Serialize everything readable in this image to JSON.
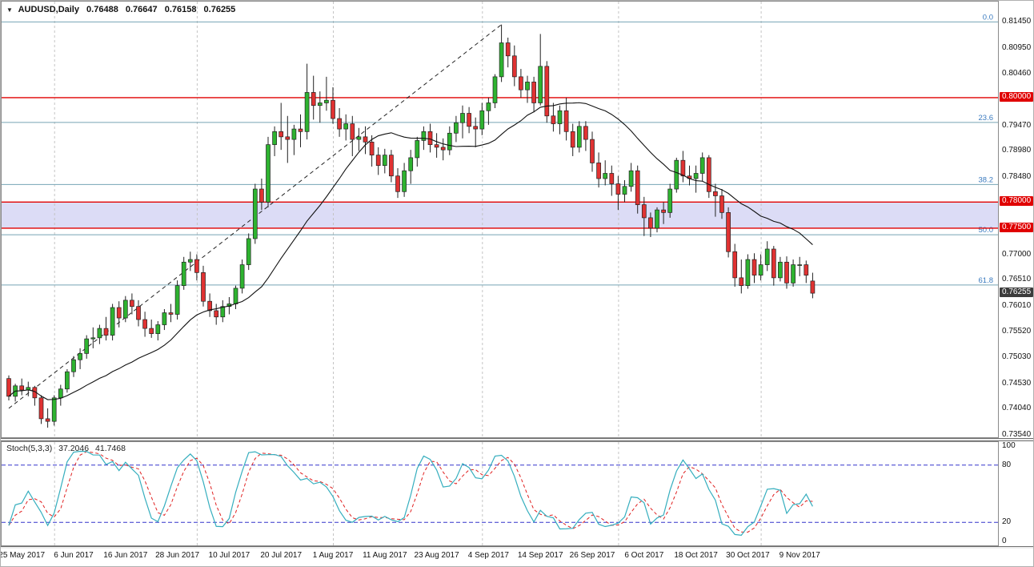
{
  "icons": {
    "quick_nav": "▼"
  },
  "header": {
    "symbol": "AUDUSD,Daily",
    "open": "0.76488",
    "high": "0.76647",
    "low": "0.76158",
    "close": "0.76255"
  },
  "indicator": {
    "label": "Stoch(5,3,3)",
    "value_k": "37.2046",
    "value_d": "41.7468"
  },
  "colors": {
    "bull": "#2eb330",
    "bear": "#e03232",
    "wick": "#222222",
    "ma": "#111111",
    "fib_line": "#76a5b5",
    "fib_label": "#3a7abf",
    "hline": "#e00000",
    "band": "#dcdcf6",
    "separator": "#c4c4c4",
    "border": "#8a8a8a",
    "stoch_k": "#35aebe",
    "stoch_d": "#e02020",
    "stoch_level": "#3333cc",
    "red_label_bg": "#e00000",
    "current_label_bg": "#3c3c3c"
  },
  "price_axis": {
    "normal": [
      {
        "text": "0.81450",
        "price": 0.8145
      },
      {
        "text": "0.80950",
        "price": 0.8095
      },
      {
        "text": "0.80460",
        "price": 0.8046
      },
      {
        "text": "0.79470",
        "price": 0.7947
      },
      {
        "text": "0.78980",
        "price": 0.7898
      },
      {
        "text": "0.78480",
        "price": 0.7848
      },
      {
        "text": "0.77000",
        "price": 0.77
      },
      {
        "text": "0.76510",
        "price": 0.7651
      },
      {
        "text": "0.76010",
        "price": 0.7601
      },
      {
        "text": "0.75520",
        "price": 0.7552
      },
      {
        "text": "0.75030",
        "price": 0.7503
      },
      {
        "text": "0.74530",
        "price": 0.7453
      },
      {
        "text": "0.74040",
        "price": 0.7404
      },
      {
        "text": "0.73540",
        "price": 0.7354
      }
    ],
    "red": [
      {
        "text": "0.80000",
        "price": 0.8
      },
      {
        "text": "0.78000",
        "price": 0.78
      },
      {
        "text": "0.77500",
        "price": 0.775
      }
    ],
    "current": {
      "text": "0.76255",
      "price": 0.76255
    }
  },
  "stoch_axis": [
    {
      "text": "100",
      "value": 100
    },
    {
      "text": "80",
      "value": 80
    },
    {
      "text": "20",
      "value": 20
    },
    {
      "text": "0",
      "value": 0
    }
  ],
  "chart_data": {
    "type": "candlestick",
    "symbol": "AUDUSD",
    "timeframe": "Daily",
    "main_ylim": [
      0.7348,
      0.8184
    ],
    "ma_period": 20,
    "band": {
      "from": 0.78,
      "to": 0.775
    },
    "hlines": [
      {
        "price": 0.8
      },
      {
        "price": 0.78
      },
      {
        "price": 0.775
      }
    ],
    "fibonacci": [
      {
        "label": "0.0",
        "price": 0.8145
      },
      {
        "label": "23.6",
        "price": 0.79526
      },
      {
        "label": "38.2",
        "price": 0.78336
      },
      {
        "label": "50.0",
        "price": 0.77375
      },
      {
        "label": "61.8",
        "price": 0.76412
      }
    ],
    "trendline": {
      "from_index": 0,
      "from_price": 0.7405,
      "to_index": 76,
      "to_price": 0.814,
      "style": "dashed"
    },
    "month_separator_indices": [
      7,
      29,
      50,
      73,
      94,
      116
    ],
    "x_ticks": [
      {
        "index": 2,
        "label": "25 May 2017"
      },
      {
        "index": 10,
        "label": "6 Jun 2017"
      },
      {
        "index": 18,
        "label": "16 Jun 2017"
      },
      {
        "index": 26,
        "label": "28 Jun 2017"
      },
      {
        "index": 34,
        "label": "10 Jul 2017"
      },
      {
        "index": 42,
        "label": "20 Jul 2017"
      },
      {
        "index": 50,
        "label": "1 Aug 2017"
      },
      {
        "index": 58,
        "label": "11 Aug 2017"
      },
      {
        "index": 66,
        "label": "23 Aug 2017"
      },
      {
        "index": 74,
        "label": "4 Sep 2017"
      },
      {
        "index": 82,
        "label": "14 Sep 2017"
      },
      {
        "index": 90,
        "label": "26 Sep 2017"
      },
      {
        "index": 98,
        "label": "6 Oct 2017"
      },
      {
        "index": 106,
        "label": "18 Oct 2017"
      },
      {
        "index": 114,
        "label": "30 Oct 2017"
      },
      {
        "index": 122,
        "label": "9 Nov 2017"
      }
    ],
    "stoch": {
      "k_period": 5,
      "slowing": 3,
      "d_period": 3,
      "levels": [
        80,
        20
      ],
      "ylim": [
        0,
        100
      ],
      "last_k": 37.2046,
      "last_d": 41.7468
    },
    "candles": [
      [
        0.7462,
        0.7468,
        0.742,
        0.7428
      ],
      [
        0.7428,
        0.7452,
        0.7418,
        0.7448
      ],
      [
        0.7448,
        0.7462,
        0.743,
        0.744
      ],
      [
        0.744,
        0.7456,
        0.7428,
        0.7445
      ],
      [
        0.7445,
        0.7448,
        0.741,
        0.7425
      ],
      [
        0.7425,
        0.743,
        0.7375,
        0.7385
      ],
      [
        0.7385,
        0.7405,
        0.7368,
        0.738
      ],
      [
        0.738,
        0.743,
        0.7372,
        0.7425
      ],
      [
        0.7425,
        0.745,
        0.741,
        0.7442
      ],
      [
        0.7442,
        0.748,
        0.7435,
        0.7475
      ],
      [
        0.7475,
        0.7505,
        0.7465,
        0.7498
      ],
      [
        0.7498,
        0.752,
        0.748,
        0.751
      ],
      [
        0.751,
        0.7545,
        0.75,
        0.7538
      ],
      [
        0.7538,
        0.756,
        0.752,
        0.754
      ],
      [
        0.754,
        0.7565,
        0.7528,
        0.7558
      ],
      [
        0.7558,
        0.758,
        0.7535,
        0.7545
      ],
      [
        0.7545,
        0.7605,
        0.7535,
        0.7598
      ],
      [
        0.7598,
        0.761,
        0.756,
        0.7578
      ],
      [
        0.7578,
        0.762,
        0.757,
        0.7612
      ],
      [
        0.7612,
        0.7625,
        0.7585,
        0.76
      ],
      [
        0.76,
        0.7612,
        0.7562,
        0.7575
      ],
      [
        0.7575,
        0.759,
        0.7542,
        0.7558
      ],
      [
        0.7558,
        0.7575,
        0.754,
        0.7548
      ],
      [
        0.7548,
        0.7572,
        0.7535,
        0.7565
      ],
      [
        0.7565,
        0.7595,
        0.7555,
        0.7588
      ],
      [
        0.7588,
        0.7605,
        0.757,
        0.7585
      ],
      [
        0.7585,
        0.765,
        0.7575,
        0.764
      ],
      [
        0.764,
        0.7695,
        0.7632,
        0.7685
      ],
      [
        0.7685,
        0.7705,
        0.7668,
        0.769
      ],
      [
        0.769,
        0.77,
        0.765,
        0.7665
      ],
      [
        0.7665,
        0.7678,
        0.76,
        0.761
      ],
      [
        0.761,
        0.7625,
        0.758,
        0.7592
      ],
      [
        0.7592,
        0.7605,
        0.7565,
        0.758
      ],
      [
        0.758,
        0.7612,
        0.757,
        0.76
      ],
      [
        0.76,
        0.7618,
        0.7585,
        0.7605
      ],
      [
        0.7605,
        0.764,
        0.7595,
        0.7635
      ],
      [
        0.7635,
        0.769,
        0.7625,
        0.768
      ],
      [
        0.768,
        0.774,
        0.767,
        0.773
      ],
      [
        0.773,
        0.7835,
        0.772,
        0.7825
      ],
      [
        0.7825,
        0.7845,
        0.7785,
        0.78
      ],
      [
        0.78,
        0.7925,
        0.779,
        0.791
      ],
      [
        0.791,
        0.7945,
        0.7888,
        0.7935
      ],
      [
        0.7935,
        0.799,
        0.79,
        0.7925
      ],
      [
        0.7925,
        0.7965,
        0.7875,
        0.792
      ],
      [
        0.792,
        0.7948,
        0.789,
        0.794
      ],
      [
        0.794,
        0.7968,
        0.7905,
        0.7935
      ],
      [
        0.7935,
        0.8065,
        0.792,
        0.801
      ],
      [
        0.801,
        0.8042,
        0.7958,
        0.7985
      ],
      [
        0.7985,
        0.8012,
        0.7952,
        0.799
      ],
      [
        0.799,
        0.804,
        0.7975,
        0.7995
      ],
      [
        0.7995,
        0.802,
        0.795,
        0.796
      ],
      [
        0.796,
        0.798,
        0.7925,
        0.794
      ],
      [
        0.794,
        0.7968,
        0.7918,
        0.795
      ],
      [
        0.795,
        0.7965,
        0.7888,
        0.792
      ],
      [
        0.792,
        0.7942,
        0.7898,
        0.7925
      ],
      [
        0.7925,
        0.7945,
        0.7892,
        0.7915
      ],
      [
        0.7915,
        0.7928,
        0.7868,
        0.789
      ],
      [
        0.789,
        0.7905,
        0.7852,
        0.787
      ],
      [
        0.787,
        0.7902,
        0.7855,
        0.789
      ],
      [
        0.789,
        0.79,
        0.7838,
        0.785
      ],
      [
        0.785,
        0.7865,
        0.7808,
        0.782
      ],
      [
        0.782,
        0.7875,
        0.781,
        0.786
      ],
      [
        0.786,
        0.79,
        0.7835,
        0.7885
      ],
      [
        0.7885,
        0.7925,
        0.7868,
        0.7918
      ],
      [
        0.7918,
        0.7945,
        0.79,
        0.7935
      ],
      [
        0.7935,
        0.795,
        0.7895,
        0.791
      ],
      [
        0.791,
        0.7932,
        0.7885,
        0.7905
      ],
      [
        0.7905,
        0.7922,
        0.788,
        0.79
      ],
      [
        0.79,
        0.7945,
        0.789,
        0.7932
      ],
      [
        0.7932,
        0.7965,
        0.7915,
        0.7952
      ],
      [
        0.7952,
        0.7985,
        0.7922,
        0.797
      ],
      [
        0.797,
        0.7982,
        0.7932,
        0.7945
      ],
      [
        0.7945,
        0.7962,
        0.7905,
        0.794
      ],
      [
        0.794,
        0.799,
        0.7928,
        0.7975
      ],
      [
        0.7975,
        0.8,
        0.7948,
        0.799
      ],
      [
        0.799,
        0.8045,
        0.798,
        0.804
      ],
      [
        0.804,
        0.814,
        0.803,
        0.8105
      ],
      [
        0.8105,
        0.8115,
        0.8058,
        0.808
      ],
      [
        0.808,
        0.81,
        0.8022,
        0.804
      ],
      [
        0.804,
        0.8055,
        0.8,
        0.8015
      ],
      [
        0.8015,
        0.8042,
        0.799,
        0.803
      ],
      [
        0.803,
        0.804,
        0.7972,
        0.799
      ],
      [
        0.799,
        0.8122,
        0.7985,
        0.806
      ],
      [
        0.806,
        0.807,
        0.7952,
        0.7965
      ],
      [
        0.7965,
        0.799,
        0.7935,
        0.795
      ],
      [
        0.795,
        0.7985,
        0.793,
        0.7975
      ],
      [
        0.7975,
        0.8,
        0.7918,
        0.7935
      ],
      [
        0.7935,
        0.795,
        0.7888,
        0.7905
      ],
      [
        0.7905,
        0.7955,
        0.7895,
        0.7945
      ],
      [
        0.7945,
        0.7955,
        0.7898,
        0.792
      ],
      [
        0.792,
        0.7935,
        0.7858,
        0.7875
      ],
      [
        0.7875,
        0.7895,
        0.7828,
        0.7845
      ],
      [
        0.7845,
        0.788,
        0.7832,
        0.7855
      ],
      [
        0.7855,
        0.787,
        0.7812,
        0.7835
      ],
      [
        0.7835,
        0.785,
        0.7785,
        0.7815
      ],
      [
        0.7815,
        0.7842,
        0.78,
        0.783
      ],
      [
        0.783,
        0.7875,
        0.782,
        0.786
      ],
      [
        0.786,
        0.787,
        0.7778,
        0.7795
      ],
      [
        0.7795,
        0.781,
        0.7735,
        0.777
      ],
      [
        0.777,
        0.778,
        0.7733,
        0.775
      ],
      [
        0.775,
        0.779,
        0.7742,
        0.7785
      ],
      [
        0.7785,
        0.78,
        0.7758,
        0.778
      ],
      [
        0.778,
        0.7835,
        0.777,
        0.7825
      ],
      [
        0.7825,
        0.7885,
        0.7818,
        0.788
      ],
      [
        0.788,
        0.7898,
        0.7838,
        0.785
      ],
      [
        0.785,
        0.787,
        0.7832,
        0.7845
      ],
      [
        0.7845,
        0.787,
        0.7818,
        0.7855
      ],
      [
        0.7855,
        0.7895,
        0.784,
        0.7885
      ],
      [
        0.7885,
        0.789,
        0.7808,
        0.782
      ],
      [
        0.782,
        0.7835,
        0.7772,
        0.7812
      ],
      [
        0.7812,
        0.7825,
        0.7768,
        0.778
      ],
      [
        0.778,
        0.779,
        0.7694,
        0.7705
      ],
      [
        0.7705,
        0.772,
        0.7638,
        0.7655
      ],
      [
        0.7655,
        0.769,
        0.7625,
        0.764
      ],
      [
        0.764,
        0.77,
        0.7634,
        0.769
      ],
      [
        0.769,
        0.7702,
        0.7645,
        0.766
      ],
      [
        0.766,
        0.77,
        0.765,
        0.768
      ],
      [
        0.768,
        0.7725,
        0.7668,
        0.771
      ],
      [
        0.771,
        0.7716,
        0.764,
        0.7655
      ],
      [
        0.7655,
        0.7695,
        0.7648,
        0.7685
      ],
      [
        0.7685,
        0.7696,
        0.7634,
        0.7645
      ],
      [
        0.7645,
        0.769,
        0.7638,
        0.768
      ],
      [
        0.768,
        0.7695,
        0.7658,
        0.768
      ],
      [
        0.768,
        0.7688,
        0.7645,
        0.766
      ],
      [
        0.76488,
        0.76647,
        0.76158,
        0.76255
      ]
    ]
  }
}
